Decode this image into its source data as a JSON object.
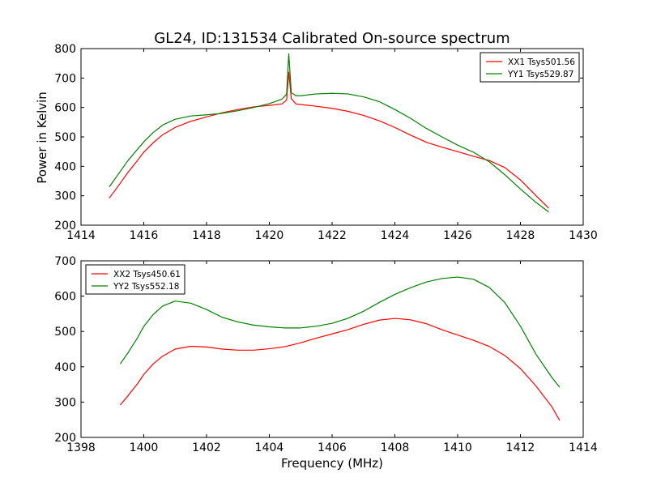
{
  "figure_title": "GL24, ID:131534 Calibrated On-source spectrum",
  "shared_ylabel": "Power in Kelvin",
  "shared_xlabel": "Frequency (MHz)",
  "chart_data": [
    {
      "type": "line",
      "xlim": [
        1414,
        1430
      ],
      "ylim": [
        200,
        800
      ],
      "xticks": [
        1414,
        1416,
        1418,
        1420,
        1422,
        1424,
        1426,
        1428,
        1430
      ],
      "yticks": [
        200,
        300,
        400,
        500,
        600,
        700,
        800
      ],
      "grid": false,
      "legend_position": "top-right",
      "series": [
        {
          "name": "XX1 Tsys501.56",
          "color": "#ff0000",
          "x": [
            1414.9,
            1415.2,
            1415.5,
            1415.8,
            1416.0,
            1416.3,
            1416.6,
            1417.0,
            1417.5,
            1418.0,
            1418.5,
            1419.0,
            1419.5,
            1420.0,
            1420.4,
            1420.55,
            1420.62,
            1420.7,
            1420.85,
            1421.0,
            1421.5,
            1422.0,
            1422.5,
            1423.0,
            1423.5,
            1424.0,
            1424.5,
            1425.0,
            1425.5,
            1426.0,
            1426.5,
            1427.0,
            1427.5,
            1428.0,
            1428.5,
            1428.9
          ],
          "values": [
            292,
            335,
            380,
            420,
            448,
            480,
            507,
            532,
            553,
            568,
            582,
            593,
            602,
            607,
            612,
            625,
            720,
            630,
            612,
            610,
            604,
            597,
            587,
            573,
            555,
            532,
            506,
            482,
            465,
            450,
            434,
            420,
            396,
            354,
            300,
            258
          ]
        },
        {
          "name": "YY1 Tsys529.87",
          "color": "#008000",
          "x": [
            1414.9,
            1415.2,
            1415.5,
            1415.8,
            1416.0,
            1416.3,
            1416.6,
            1417.0,
            1417.5,
            1418.0,
            1418.5,
            1419.0,
            1419.5,
            1420.0,
            1420.4,
            1420.55,
            1420.62,
            1420.7,
            1420.85,
            1421.0,
            1421.5,
            1422.0,
            1422.5,
            1423.0,
            1423.5,
            1424.0,
            1424.5,
            1425.0,
            1425.5,
            1426.0,
            1426.5,
            1427.0,
            1427.5,
            1428.0,
            1428.5,
            1428.9
          ],
          "values": [
            330,
            375,
            420,
            458,
            483,
            515,
            540,
            560,
            571,
            575,
            580,
            589,
            600,
            613,
            628,
            645,
            782,
            650,
            640,
            640,
            646,
            648,
            646,
            636,
            620,
            593,
            563,
            529,
            500,
            472,
            448,
            416,
            372,
            323,
            277,
            245
          ]
        }
      ]
    },
    {
      "type": "line",
      "xlim": [
        1398,
        1414
      ],
      "ylim": [
        200,
        700
      ],
      "xticks": [
        1398,
        1400,
        1402,
        1404,
        1406,
        1408,
        1410,
        1412,
        1414
      ],
      "yticks": [
        200,
        300,
        400,
        500,
        600,
        700
      ],
      "grid": false,
      "legend_position": "top-left",
      "series": [
        {
          "name": "XX2 Tsys450.61",
          "color": "#ff0000",
          "x": [
            1399.25,
            1399.5,
            1399.8,
            1400.0,
            1400.3,
            1400.6,
            1401.0,
            1401.5,
            1402.0,
            1402.5,
            1403.0,
            1403.5,
            1404.0,
            1404.5,
            1405.0,
            1405.5,
            1406.0,
            1406.5,
            1407.0,
            1407.5,
            1408.0,
            1408.5,
            1409.0,
            1409.5,
            1410.0,
            1410.5,
            1411.0,
            1411.5,
            1412.0,
            1412.5,
            1413.0,
            1413.25
          ],
          "values": [
            292,
            318,
            352,
            378,
            408,
            430,
            450,
            458,
            456,
            450,
            447,
            447,
            451,
            457,
            468,
            481,
            493,
            505,
            520,
            532,
            537,
            533,
            522,
            505,
            490,
            475,
            458,
            432,
            395,
            345,
            287,
            248
          ]
        },
        {
          "name": "YY2 Tsys552.18",
          "color": "#008000",
          "x": [
            1399.25,
            1399.5,
            1399.8,
            1400.0,
            1400.3,
            1400.6,
            1401.0,
            1401.5,
            1402.0,
            1402.5,
            1403.0,
            1403.5,
            1404.0,
            1404.5,
            1405.0,
            1405.5,
            1406.0,
            1406.5,
            1407.0,
            1407.5,
            1408.0,
            1408.5,
            1409.0,
            1409.5,
            1410.0,
            1410.5,
            1411.0,
            1411.5,
            1412.0,
            1412.5,
            1413.0,
            1413.25
          ],
          "values": [
            408,
            440,
            482,
            514,
            548,
            572,
            586,
            580,
            562,
            540,
            527,
            518,
            513,
            510,
            510,
            515,
            523,
            537,
            557,
            582,
            605,
            624,
            640,
            650,
            654,
            648,
            625,
            582,
            515,
            435,
            370,
            342
          ]
        }
      ]
    }
  ]
}
